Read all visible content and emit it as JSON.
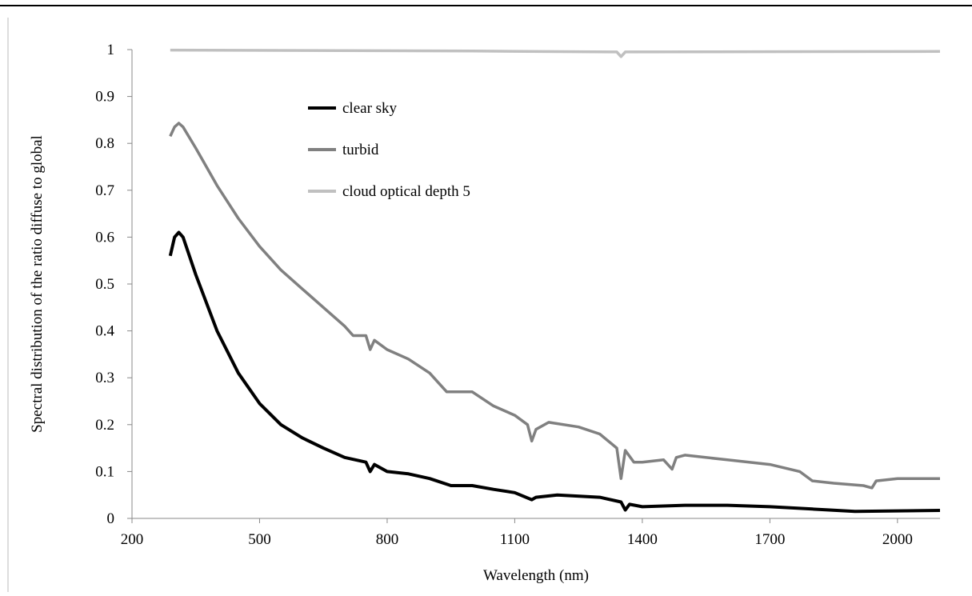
{
  "chart_data": {
    "type": "line",
    "x_label": "Wavelength (nm)",
    "y_label": "Spectral distribution of the ratio diffuse to global",
    "xlim": [
      200,
      2100
    ],
    "xticks": [
      200,
      500,
      800,
      1100,
      1400,
      1700,
      2000
    ],
    "ylim": [
      0,
      1
    ],
    "yticks": [
      0,
      0.1,
      0.2,
      0.3,
      0.4,
      0.5,
      0.6,
      0.7,
      0.8,
      0.9,
      1
    ],
    "legend": "upper-left",
    "series": [
      {
        "name": "clear sky",
        "color": "#000000",
        "x": [
          290,
          300,
          310,
          320,
          350,
          400,
          450,
          500,
          550,
          600,
          650,
          700,
          750,
          760,
          770,
          800,
          850,
          900,
          950,
          1000,
          1050,
          1100,
          1140,
          1150,
          1200,
          1300,
          1350,
          1360,
          1370,
          1400,
          1500,
          1600,
          1700,
          1800,
          1900,
          2000,
          2100
        ],
        "values": [
          0.56,
          0.6,
          0.61,
          0.6,
          0.52,
          0.4,
          0.31,
          0.245,
          0.2,
          0.172,
          0.15,
          0.13,
          0.12,
          0.1,
          0.115,
          0.1,
          0.095,
          0.085,
          0.07,
          0.07,
          0.062,
          0.055,
          0.04,
          0.045,
          0.05,
          0.045,
          0.035,
          0.018,
          0.03,
          0.025,
          0.028,
          0.028,
          0.025,
          0.02,
          0.015,
          0.016,
          0.017
        ]
      },
      {
        "name": "turbid",
        "color": "#808080",
        "x": [
          290,
          300,
          310,
          320,
          350,
          400,
          450,
          500,
          550,
          600,
          650,
          700,
          720,
          750,
          760,
          770,
          800,
          850,
          900,
          920,
          940,
          1000,
          1050,
          1100,
          1130,
          1140,
          1150,
          1180,
          1250,
          1300,
          1340,
          1350,
          1360,
          1380,
          1400,
          1450,
          1470,
          1480,
          1500,
          1600,
          1700,
          1770,
          1800,
          1850,
          1920,
          1940,
          1950,
          2000,
          2050,
          2100
        ],
        "values": [
          0.815,
          0.835,
          0.843,
          0.835,
          0.79,
          0.71,
          0.64,
          0.58,
          0.53,
          0.49,
          0.45,
          0.41,
          0.39,
          0.39,
          0.36,
          0.38,
          0.36,
          0.34,
          0.31,
          0.29,
          0.27,
          0.27,
          0.24,
          0.22,
          0.2,
          0.165,
          0.19,
          0.205,
          0.195,
          0.18,
          0.15,
          0.085,
          0.145,
          0.12,
          0.12,
          0.125,
          0.105,
          0.13,
          0.135,
          0.125,
          0.115,
          0.1,
          0.08,
          0.075,
          0.07,
          0.065,
          0.08,
          0.085,
          0.085,
          0.085
        ]
      },
      {
        "name": "cloud optical depth 5",
        "color": "#c0c0c0",
        "x": [
          290,
          1000,
          1340,
          1350,
          1360,
          2100
        ],
        "values": [
          0.999,
          0.997,
          0.995,
          0.985,
          0.995,
          0.996
        ]
      }
    ]
  }
}
